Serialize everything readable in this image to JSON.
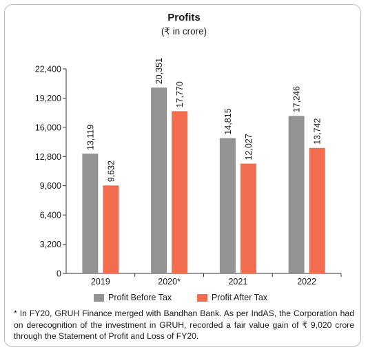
{
  "chart_data": {
    "type": "bar",
    "title": "Profits",
    "subtitle": "(₹ in crore)",
    "categories": [
      "2019",
      "2020*",
      "2021",
      "2022"
    ],
    "series": [
      {
        "name": "Profit Before Tax",
        "color": "#939393",
        "values": [
          13119,
          20351,
          14815,
          17246
        ],
        "labels": [
          "13,119",
          "20,351",
          "14,815",
          "17,246"
        ]
      },
      {
        "name": "Profit After Tax",
        "color": "#f26d4f",
        "values": [
          9632,
          17770,
          12027,
          13742
        ],
        "labels": [
          "9,632",
          "17,770",
          "12,027",
          "13,742"
        ]
      }
    ],
    "ylim": [
      0,
      22400
    ],
    "yticks": [
      0,
      3200,
      6400,
      9600,
      12800,
      16000,
      19200,
      22400
    ],
    "ytick_labels": [
      "0",
      "3,200",
      "6,400",
      "9,600",
      "12,800",
      "16,000",
      "19,200",
      "22,400"
    ],
    "grid": false,
    "legend_position": "bottom"
  },
  "footnote": "* In FY20, GRUH Finance merged with Bandhan Bank. As per IndAS, the Corporation had on derecognition of the investment in GRUH, recorded a fair value gain of ₹ 9,020 crore through the Statement of Profit and Loss of FY20."
}
